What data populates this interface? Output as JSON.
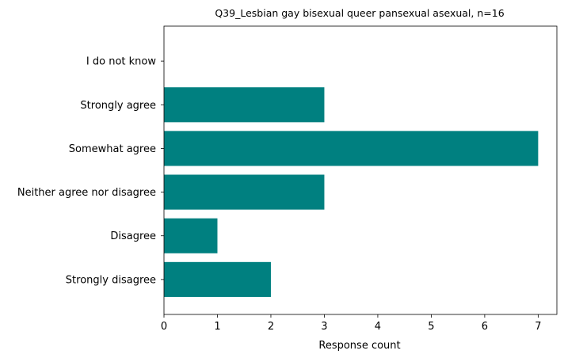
{
  "chart_data": {
    "type": "bar",
    "orientation": "horizontal",
    "title": "Q39_Lesbian gay bisexual queer pansexual asexual, n=16",
    "xlabel": "Response count",
    "ylabel": "",
    "categories": [
      "Strongly disagree",
      "Disagree",
      "Neither agree nor disagree",
      "Somewhat agree",
      "Strongly agree",
      "I do not know"
    ],
    "values": [
      2,
      1,
      3,
      7,
      3,
      0
    ],
    "xlim": [
      0,
      7.35
    ],
    "xticks": [
      "0",
      "1",
      "2",
      "3",
      "4",
      "5",
      "6",
      "7"
    ],
    "bar_color": "#008080",
    "grid": false,
    "legend": "none"
  }
}
